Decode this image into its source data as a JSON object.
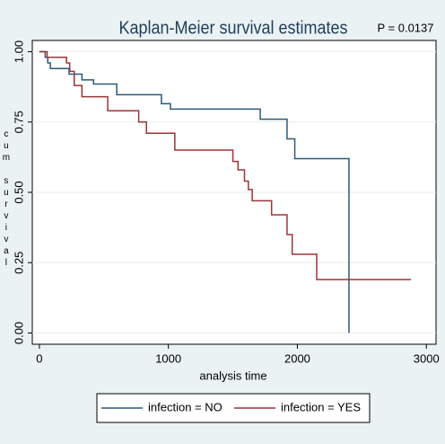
{
  "chart_data": {
    "type": "step",
    "title": "Kaplan-Meier survival estimates",
    "annotation": "P = 0.0137",
    "xlabel": "analysis time",
    "ylabel": "cum survival",
    "xlim": [
      -55,
      3075
    ],
    "ylim": [
      -0.04,
      1.04
    ],
    "xticks": [
      0,
      1000,
      2000,
      3000
    ],
    "yticks": [
      {
        "value": 0,
        "label": "0.00"
      },
      {
        "value": 0.25,
        "label": "0.25"
      },
      {
        "value": 0.5,
        "label": "0.50"
      },
      {
        "value": 0.75,
        "label": "0.75"
      },
      {
        "value": 1,
        "label": "1.00"
      }
    ],
    "grid": true,
    "legend": "bottom",
    "series": [
      {
        "name": "infection = NO",
        "color": "#2b5a78",
        "x": [
          0,
          45,
          65,
          85,
          230,
          330,
          420,
          600,
          946,
          1016,
          1712,
          1920,
          1980,
          2400
        ],
        "values": [
          1,
          0.98,
          0.96,
          0.94,
          0.92,
          0.9,
          0.885,
          0.847,
          0.815,
          0.796,
          0.76,
          0.69,
          0.62,
          0
        ]
      },
      {
        "name": "infection = YES",
        "color": "#9b3535",
        "x": [
          0,
          60,
          210,
          235,
          270,
          330,
          530,
          770,
          830,
          1050,
          1500,
          1540,
          1590,
          1620,
          1650,
          1800,
          1920,
          1960,
          2150,
          2880
        ],
        "values": [
          1,
          0.98,
          0.96,
          0.93,
          0.88,
          0.84,
          0.79,
          0.75,
          0.71,
          0.65,
          0.61,
          0.58,
          0.54,
          0.51,
          0.47,
          0.42,
          0.35,
          0.28,
          0.19,
          0.19
        ]
      }
    ]
  }
}
